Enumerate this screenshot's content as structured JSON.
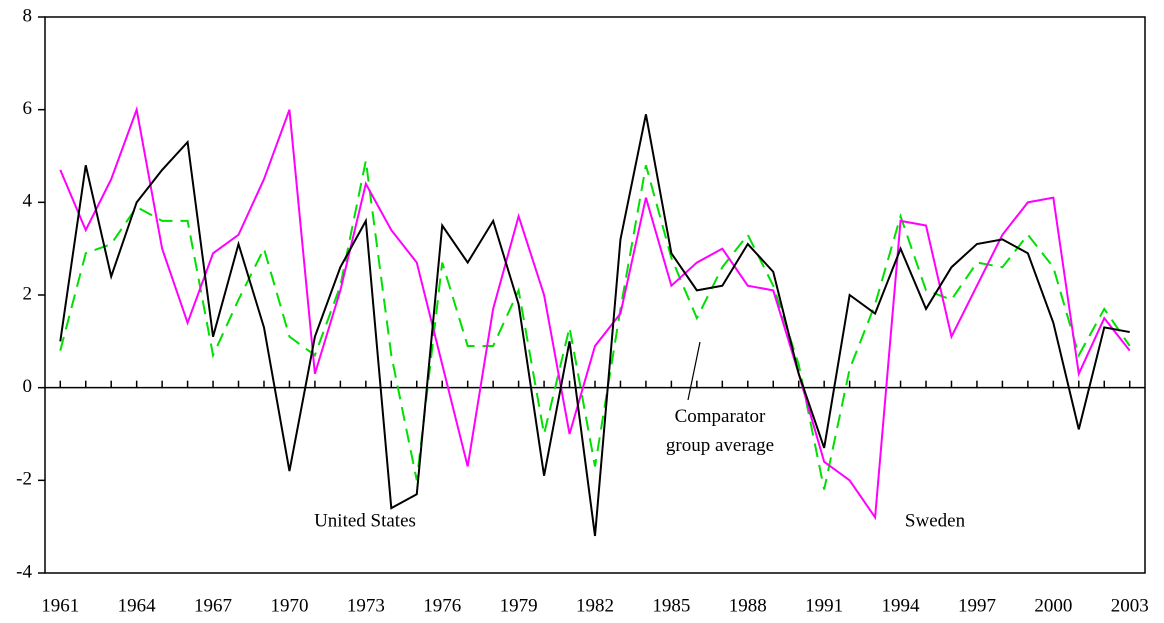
{
  "chart_data": {
    "type": "line",
    "x": [
      1961,
      1962,
      1963,
      1964,
      1965,
      1966,
      1967,
      1968,
      1969,
      1970,
      1971,
      1972,
      1973,
      1974,
      1975,
      1976,
      1977,
      1978,
      1979,
      1980,
      1981,
      1982,
      1983,
      1984,
      1985,
      1986,
      1987,
      1988,
      1989,
      1990,
      1991,
      1992,
      1993,
      1994,
      1995,
      1996,
      1997,
      1998,
      1999,
      2000,
      2001,
      2002,
      2003
    ],
    "series": [
      {
        "name": "United States",
        "color": "#000000",
        "dashed": false,
        "values": [
          1.0,
          4.8,
          2.4,
          4.0,
          4.7,
          5.3,
          1.1,
          3.1,
          1.3,
          -1.8,
          1.1,
          2.6,
          3.6,
          -2.6,
          -2.3,
          3.5,
          2.7,
          3.6,
          1.8,
          -1.9,
          1.0,
          -3.2,
          3.2,
          5.9,
          2.9,
          2.1,
          2.2,
          3.1,
          2.5,
          0.3,
          -1.3,
          2.0,
          1.6,
          3.0,
          1.7,
          2.6,
          3.1,
          3.2,
          2.9,
          1.4,
          -0.9,
          1.3,
          1.2
        ]
      },
      {
        "name": "Sweden",
        "color": "#ff00ff",
        "dashed": false,
        "values": [
          4.7,
          3.4,
          4.5,
          6.0,
          3.0,
          1.4,
          2.9,
          3.3,
          4.5,
          6.0,
          0.3,
          2.1,
          4.4,
          3.4,
          2.7,
          0.5,
          -1.7,
          1.7,
          3.7,
          2.0,
          -1.0,
          0.9,
          1.6,
          4.1,
          2.2,
          2.7,
          3.0,
          2.2,
          2.1,
          0.3,
          -1.6,
          -2.0,
          -2.8,
          3.6,
          3.5,
          1.1,
          2.2,
          3.3,
          4.0,
          4.1,
          0.3,
          1.5,
          0.8
        ]
      },
      {
        "name": "Comparator group average",
        "color": "#00e000",
        "dashed": true,
        "values": [
          0.8,
          2.9,
          3.1,
          3.9,
          3.6,
          3.6,
          0.7,
          1.9,
          3.0,
          1.1,
          0.7,
          2.2,
          4.9,
          0.7,
          -2.0,
          2.7,
          0.9,
          0.9,
          2.1,
          -1.0,
          1.3,
          -1.7,
          1.7,
          4.8,
          2.8,
          1.5,
          2.6,
          3.3,
          2.2,
          0.5,
          -2.2,
          0.4,
          1.8,
          3.7,
          2.1,
          1.9,
          2.7,
          2.6,
          3.3,
          2.6,
          0.7,
          1.7,
          0.9
        ]
      }
    ],
    "xlim": [
      1960.4,
      2003.6
    ],
    "xticks": [
      1961,
      1964,
      1967,
      1970,
      1973,
      1976,
      1979,
      1982,
      1985,
      1988,
      1991,
      1994,
      1997,
      2000,
      2003
    ],
    "ylim": [
      -4,
      8
    ],
    "yticks": [
      -4,
      -2,
      0,
      2,
      4,
      6,
      8
    ],
    "grid": false
  }
}
